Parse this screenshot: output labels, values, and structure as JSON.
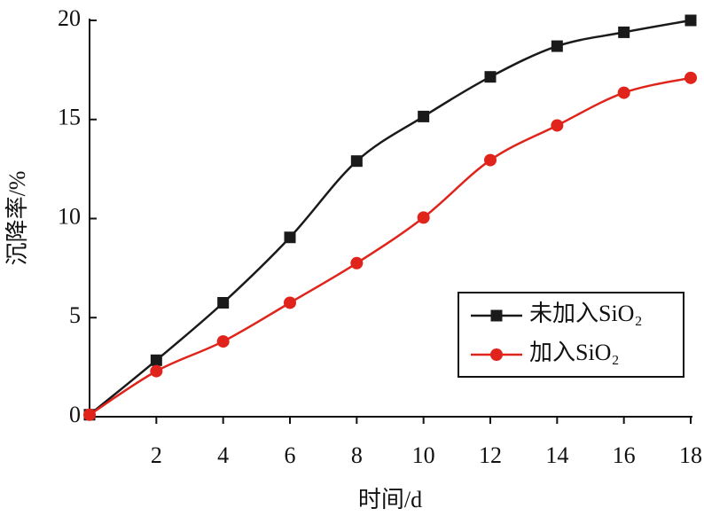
{
  "chart_data": {
    "type": "line",
    "xlabel": "时间/d",
    "ylabel": "沉降率/%",
    "x": [
      0,
      2,
      4,
      6,
      8,
      10,
      12,
      14,
      16,
      18
    ],
    "series": [
      {
        "name": "未加入SiO₂",
        "color": "#1a1a1a",
        "marker": "square",
        "values": [
          0.1,
          2.85,
          5.75,
          9.05,
          12.9,
          15.15,
          17.15,
          18.7,
          19.4,
          20.0
        ]
      },
      {
        "name": "加入SiO₂",
        "color": "#e0241b",
        "marker": "circle",
        "values": [
          0.1,
          2.3,
          3.8,
          5.75,
          7.75,
          10.05,
          12.95,
          14.7,
          16.35,
          17.1
        ]
      }
    ],
    "xlim": [
      0,
      18
    ],
    "ylim": [
      0,
      20
    ],
    "xticks": [
      2,
      4,
      6,
      8,
      10,
      12,
      14,
      16,
      18
    ],
    "yticks": [
      0,
      5,
      10,
      15,
      20
    ],
    "legend": "lower right",
    "grid": false
  }
}
